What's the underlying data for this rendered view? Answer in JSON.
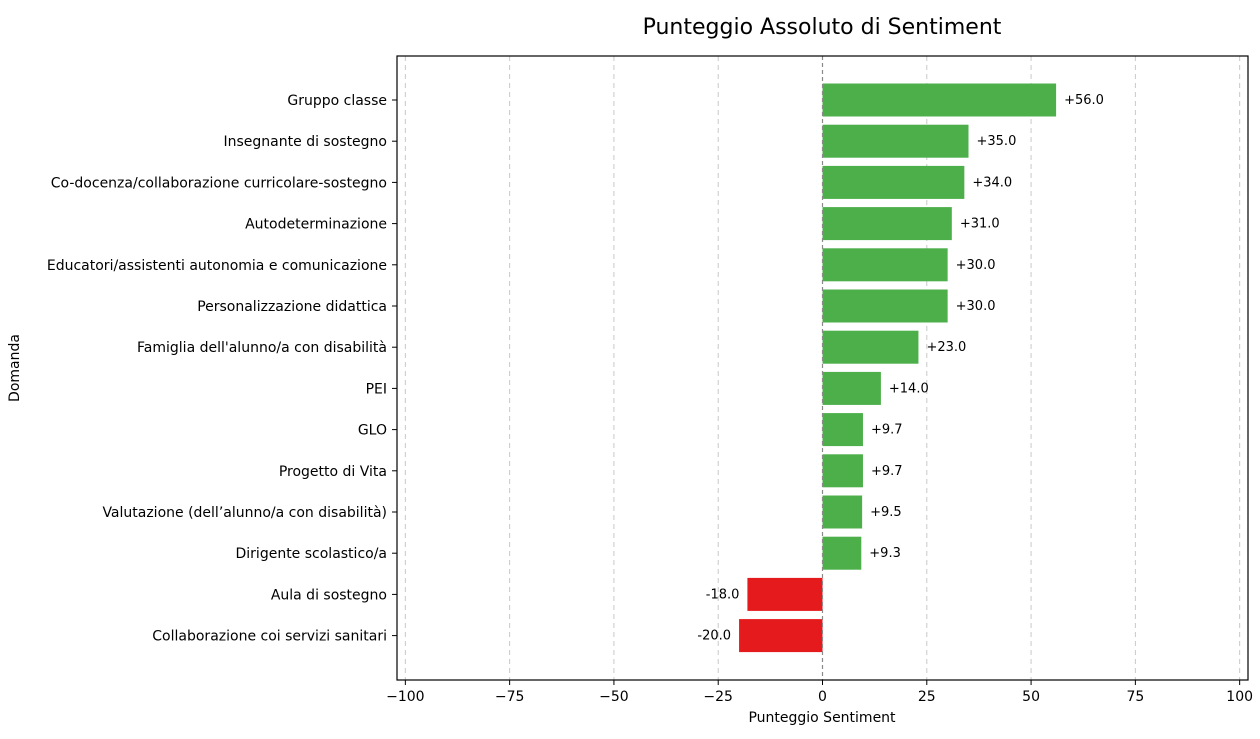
{
  "chart_data": {
    "type": "bar",
    "orientation": "horizontal",
    "title": "Punteggio Assoluto di Sentiment",
    "xlabel": "Punteggio Sentiment",
    "ylabel": "Domanda",
    "xlim": [
      -102,
      102
    ],
    "xticks": [
      -100,
      -75,
      -50,
      -25,
      0,
      25,
      50,
      75,
      100
    ],
    "xtick_labels": [
      "−100",
      "−75",
      "−50",
      "−25",
      "0",
      "25",
      "50",
      "75",
      "100"
    ],
    "grid": "x-dashed",
    "zero_line": "dashed",
    "colors": {
      "positive": "#4daf4a",
      "negative": "#e41a1c"
    },
    "categories": [
      "Gruppo classe",
      "Insegnante di sostegno",
      "Co-docenza/collaborazione curricolare-sostegno",
      "Autodeterminazione",
      "Educatori/assistenti autonomia e comunicazione",
      "Personalizzazione didattica",
      "Famiglia dell'alunno/a con disabilità",
      "PEI",
      "GLO",
      "Progetto di Vita",
      "Valutazione (dell’alunno/a con disabilità)",
      "Dirigente scolastico/a",
      "Aula di sostegno",
      "Collaborazione coi servizi sanitari"
    ],
    "values": [
      56.0,
      35.0,
      34.0,
      31.0,
      30.0,
      30.0,
      23.0,
      14.0,
      9.7,
      9.7,
      9.5,
      9.3,
      -18.0,
      -20.0
    ],
    "data_labels": [
      "+56.0",
      "+35.0",
      "+34.0",
      "+31.0",
      "+30.0",
      "+30.0",
      "+23.0",
      "+14.0",
      "+9.7",
      "+9.7",
      "+9.5",
      "+9.3",
      "-18.0",
      "-20.0"
    ]
  }
}
